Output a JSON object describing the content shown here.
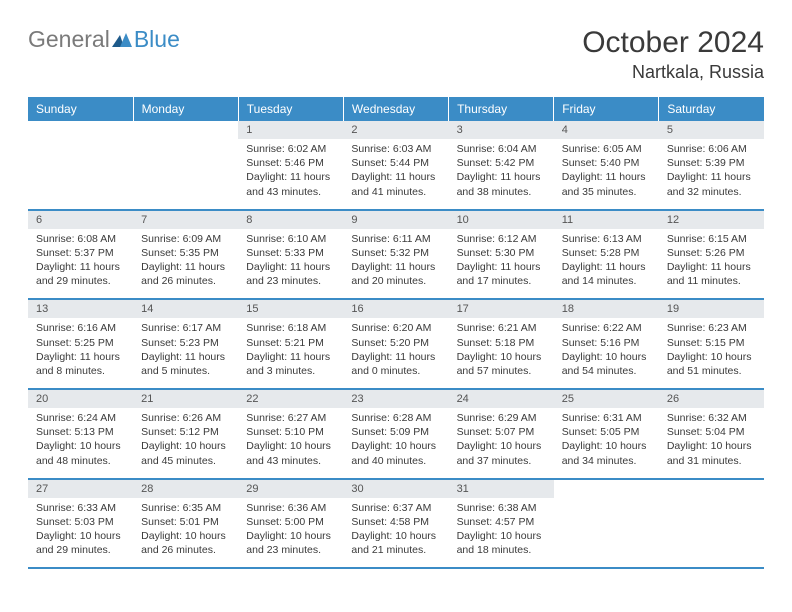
{
  "brand": {
    "general": "General",
    "blue": "Blue"
  },
  "title": "October 2024",
  "location": "Nartkala, Russia",
  "colors": {
    "accent": "#3b8cc6",
    "header_bg": "#3b8cc6",
    "daynum_bg": "#e6e9ec",
    "text": "#3a3a3a"
  },
  "day_names": [
    "Sunday",
    "Monday",
    "Tuesday",
    "Wednesday",
    "Thursday",
    "Friday",
    "Saturday"
  ],
  "weeks": [
    [
      {
        "n": "",
        "sr": "",
        "ss": "",
        "d1": "",
        "d2": ""
      },
      {
        "n": "",
        "sr": "",
        "ss": "",
        "d1": "",
        "d2": ""
      },
      {
        "n": "1",
        "sr": "Sunrise: 6:02 AM",
        "ss": "Sunset: 5:46 PM",
        "d1": "Daylight: 11 hours",
        "d2": "and 43 minutes."
      },
      {
        "n": "2",
        "sr": "Sunrise: 6:03 AM",
        "ss": "Sunset: 5:44 PM",
        "d1": "Daylight: 11 hours",
        "d2": "and 41 minutes."
      },
      {
        "n": "3",
        "sr": "Sunrise: 6:04 AM",
        "ss": "Sunset: 5:42 PM",
        "d1": "Daylight: 11 hours",
        "d2": "and 38 minutes."
      },
      {
        "n": "4",
        "sr": "Sunrise: 6:05 AM",
        "ss": "Sunset: 5:40 PM",
        "d1": "Daylight: 11 hours",
        "d2": "and 35 minutes."
      },
      {
        "n": "5",
        "sr": "Sunrise: 6:06 AM",
        "ss": "Sunset: 5:39 PM",
        "d1": "Daylight: 11 hours",
        "d2": "and 32 minutes."
      }
    ],
    [
      {
        "n": "6",
        "sr": "Sunrise: 6:08 AM",
        "ss": "Sunset: 5:37 PM",
        "d1": "Daylight: 11 hours",
        "d2": "and 29 minutes."
      },
      {
        "n": "7",
        "sr": "Sunrise: 6:09 AM",
        "ss": "Sunset: 5:35 PM",
        "d1": "Daylight: 11 hours",
        "d2": "and 26 minutes."
      },
      {
        "n": "8",
        "sr": "Sunrise: 6:10 AM",
        "ss": "Sunset: 5:33 PM",
        "d1": "Daylight: 11 hours",
        "d2": "and 23 minutes."
      },
      {
        "n": "9",
        "sr": "Sunrise: 6:11 AM",
        "ss": "Sunset: 5:32 PM",
        "d1": "Daylight: 11 hours",
        "d2": "and 20 minutes."
      },
      {
        "n": "10",
        "sr": "Sunrise: 6:12 AM",
        "ss": "Sunset: 5:30 PM",
        "d1": "Daylight: 11 hours",
        "d2": "and 17 minutes."
      },
      {
        "n": "11",
        "sr": "Sunrise: 6:13 AM",
        "ss": "Sunset: 5:28 PM",
        "d1": "Daylight: 11 hours",
        "d2": "and 14 minutes."
      },
      {
        "n": "12",
        "sr": "Sunrise: 6:15 AM",
        "ss": "Sunset: 5:26 PM",
        "d1": "Daylight: 11 hours",
        "d2": "and 11 minutes."
      }
    ],
    [
      {
        "n": "13",
        "sr": "Sunrise: 6:16 AM",
        "ss": "Sunset: 5:25 PM",
        "d1": "Daylight: 11 hours",
        "d2": "and 8 minutes."
      },
      {
        "n": "14",
        "sr": "Sunrise: 6:17 AM",
        "ss": "Sunset: 5:23 PM",
        "d1": "Daylight: 11 hours",
        "d2": "and 5 minutes."
      },
      {
        "n": "15",
        "sr": "Sunrise: 6:18 AM",
        "ss": "Sunset: 5:21 PM",
        "d1": "Daylight: 11 hours",
        "d2": "and 3 minutes."
      },
      {
        "n": "16",
        "sr": "Sunrise: 6:20 AM",
        "ss": "Sunset: 5:20 PM",
        "d1": "Daylight: 11 hours",
        "d2": "and 0 minutes."
      },
      {
        "n": "17",
        "sr": "Sunrise: 6:21 AM",
        "ss": "Sunset: 5:18 PM",
        "d1": "Daylight: 10 hours",
        "d2": "and 57 minutes."
      },
      {
        "n": "18",
        "sr": "Sunrise: 6:22 AM",
        "ss": "Sunset: 5:16 PM",
        "d1": "Daylight: 10 hours",
        "d2": "and 54 minutes."
      },
      {
        "n": "19",
        "sr": "Sunrise: 6:23 AM",
        "ss": "Sunset: 5:15 PM",
        "d1": "Daylight: 10 hours",
        "d2": "and 51 minutes."
      }
    ],
    [
      {
        "n": "20",
        "sr": "Sunrise: 6:24 AM",
        "ss": "Sunset: 5:13 PM",
        "d1": "Daylight: 10 hours",
        "d2": "and 48 minutes."
      },
      {
        "n": "21",
        "sr": "Sunrise: 6:26 AM",
        "ss": "Sunset: 5:12 PM",
        "d1": "Daylight: 10 hours",
        "d2": "and 45 minutes."
      },
      {
        "n": "22",
        "sr": "Sunrise: 6:27 AM",
        "ss": "Sunset: 5:10 PM",
        "d1": "Daylight: 10 hours",
        "d2": "and 43 minutes."
      },
      {
        "n": "23",
        "sr": "Sunrise: 6:28 AM",
        "ss": "Sunset: 5:09 PM",
        "d1": "Daylight: 10 hours",
        "d2": "and 40 minutes."
      },
      {
        "n": "24",
        "sr": "Sunrise: 6:29 AM",
        "ss": "Sunset: 5:07 PM",
        "d1": "Daylight: 10 hours",
        "d2": "and 37 minutes."
      },
      {
        "n": "25",
        "sr": "Sunrise: 6:31 AM",
        "ss": "Sunset: 5:05 PM",
        "d1": "Daylight: 10 hours",
        "d2": "and 34 minutes."
      },
      {
        "n": "26",
        "sr": "Sunrise: 6:32 AM",
        "ss": "Sunset: 5:04 PM",
        "d1": "Daylight: 10 hours",
        "d2": "and 31 minutes."
      }
    ],
    [
      {
        "n": "27",
        "sr": "Sunrise: 6:33 AM",
        "ss": "Sunset: 5:03 PM",
        "d1": "Daylight: 10 hours",
        "d2": "and 29 minutes."
      },
      {
        "n": "28",
        "sr": "Sunrise: 6:35 AM",
        "ss": "Sunset: 5:01 PM",
        "d1": "Daylight: 10 hours",
        "d2": "and 26 minutes."
      },
      {
        "n": "29",
        "sr": "Sunrise: 6:36 AM",
        "ss": "Sunset: 5:00 PM",
        "d1": "Daylight: 10 hours",
        "d2": "and 23 minutes."
      },
      {
        "n": "30",
        "sr": "Sunrise: 6:37 AM",
        "ss": "Sunset: 4:58 PM",
        "d1": "Daylight: 10 hours",
        "d2": "and 21 minutes."
      },
      {
        "n": "31",
        "sr": "Sunrise: 6:38 AM",
        "ss": "Sunset: 4:57 PM",
        "d1": "Daylight: 10 hours",
        "d2": "and 18 minutes."
      },
      {
        "n": "",
        "sr": "",
        "ss": "",
        "d1": "",
        "d2": ""
      },
      {
        "n": "",
        "sr": "",
        "ss": "",
        "d1": "",
        "d2": ""
      }
    ]
  ]
}
